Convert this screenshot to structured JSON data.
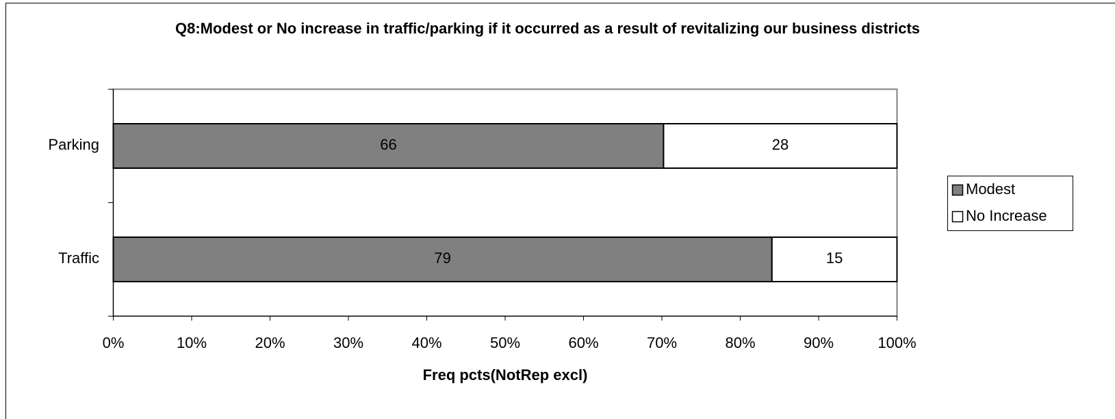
{
  "chart_data": {
    "type": "bar",
    "orientation": "horizontal",
    "stack": "percent",
    "title": "Q8:Modest or No increase in traffic/parking if it occurred as a result of revitalizing our business districts",
    "x_label": "Freq pcts(NotRep excl)",
    "categories": [
      "Parking",
      "Traffic"
    ],
    "series": [
      {
        "name": "Modest",
        "color": "#808080",
        "values": [
          66,
          79
        ]
      },
      {
        "name": "No Increase",
        "color": "#ffffff",
        "values": [
          28,
          15
        ]
      }
    ],
    "xlim": [
      0,
      100
    ],
    "xticks": [
      {
        "value": 0,
        "label": "0%"
      },
      {
        "value": 10,
        "label": "10%"
      },
      {
        "value": 20,
        "label": "20%"
      },
      {
        "value": 30,
        "label": "30%"
      },
      {
        "value": 40,
        "label": "40%"
      },
      {
        "value": 50,
        "label": "50%"
      },
      {
        "value": 60,
        "label": "60%"
      },
      {
        "value": 70,
        "label": "70%"
      },
      {
        "value": 80,
        "label": "80%"
      },
      {
        "value": 90,
        "label": "90%"
      },
      {
        "value": 100,
        "label": "100%"
      }
    ],
    "legend": "right",
    "grid": false
  }
}
